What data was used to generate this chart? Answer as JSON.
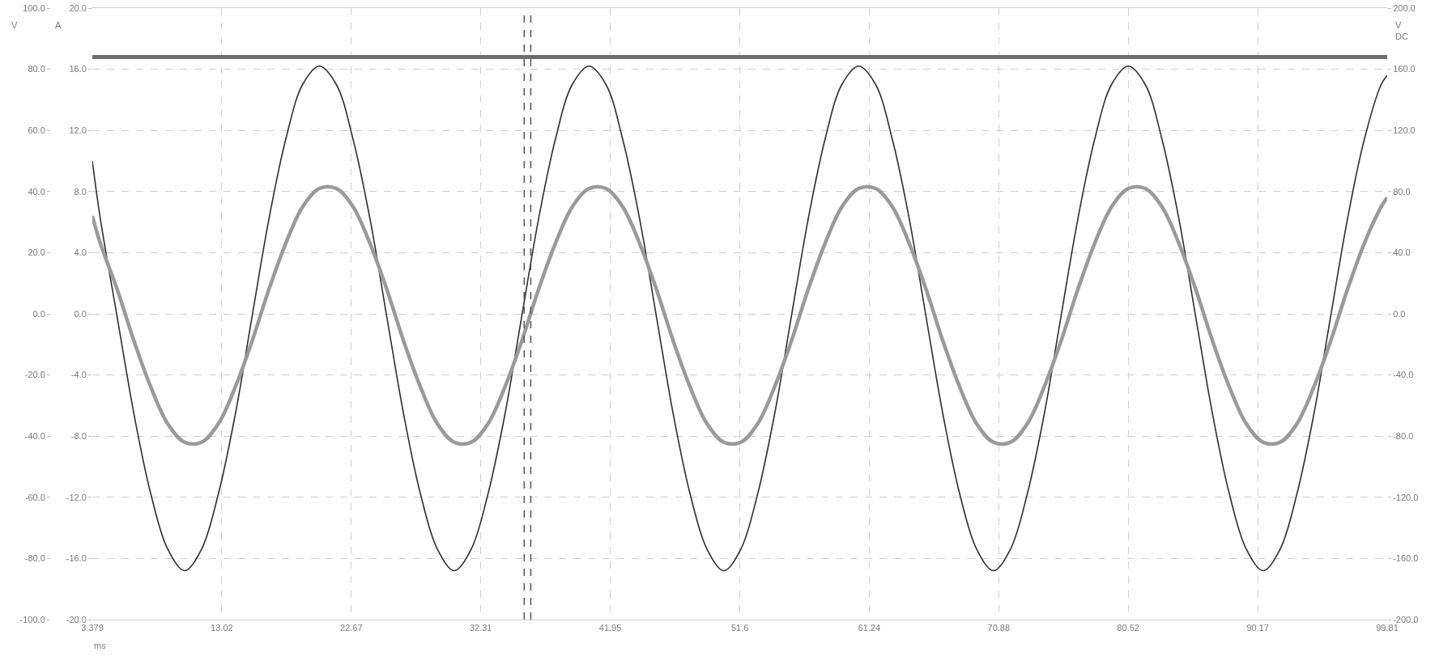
{
  "chart_data": {
    "type": "line",
    "xlabel": "ms",
    "ylabel": "V",
    "y2label": "A",
    "y3label": "V\nDC",
    "x": [
      3.379,
      3.98,
      5.23,
      6.49,
      7.74,
      9.0,
      10.25,
      11.51,
      12.76,
      14.02,
      15.27,
      16.53,
      17.78,
      19.04,
      20.29,
      21.55,
      22.8,
      24.06,
      25.31,
      26.57,
      27.82,
      29.08,
      30.33,
      31.59,
      32.84,
      34.1,
      35.35,
      36.61,
      37.86,
      39.12,
      40.37,
      41.63,
      42.88,
      44.14,
      45.39,
      46.65,
      47.9,
      49.16,
      50.41,
      51.67,
      52.92,
      54.18,
      55.43,
      56.69,
      57.94,
      59.2,
      60.45,
      61.71,
      62.96,
      64.22,
      65.47,
      66.73,
      67.98,
      69.24,
      70.49,
      71.75,
      73.0,
      74.26,
      75.51,
      76.77,
      78.02,
      79.28,
      80.53,
      81.79,
      83.04,
      84.3,
      85.55,
      86.81,
      88.06,
      89.32,
      90.57,
      91.83,
      93.08,
      94.34,
      95.59,
      96.85,
      98.1,
      99.36,
      99.81
    ],
    "xlim": [
      3.379,
      99.81
    ],
    "xticks": [
      3.379,
      13.02,
      22.67,
      32.31,
      41.95,
      51.6,
      61.24,
      70.88,
      80.52,
      90.17,
      99.81
    ],
    "ylim": [
      -100,
      100
    ],
    "yticks": [
      {
        "value": -100,
        "label": "-100.0"
      },
      {
        "value": -80,
        "label": "-80.0"
      },
      {
        "value": -60,
        "label": "-60.0"
      },
      {
        "value": -40,
        "label": "-40.0"
      },
      {
        "value": -20,
        "label": "-20.0"
      },
      {
        "value": 0,
        "label": "0.0"
      },
      {
        "value": 20,
        "label": "20.0"
      },
      {
        "value": 40,
        "label": "40.0"
      },
      {
        "value": 60,
        "label": "60.0"
      },
      {
        "value": 80,
        "label": "80.0"
      },
      {
        "value": 100,
        "label": "100.0"
      }
    ],
    "y2lim": [
      -20,
      20
    ],
    "y2ticks": [
      {
        "value": -20,
        "label": "-20.0"
      },
      {
        "value": -16,
        "label": "-16.0"
      },
      {
        "value": -12,
        "label": "-12.0"
      },
      {
        "value": -8,
        "label": "-8.0"
      },
      {
        "value": -4,
        "label": "-4.0"
      },
      {
        "value": 0,
        "label": "0.0"
      },
      {
        "value": 4,
        "label": "4.0"
      },
      {
        "value": 8,
        "label": "8.0"
      },
      {
        "value": 12,
        "label": "12.0"
      },
      {
        "value": 16,
        "label": "16.0"
      },
      {
        "value": 20,
        "label": "20.0"
      }
    ],
    "y3lim": [
      -200,
      200
    ],
    "y3ticks": [
      {
        "value": -200,
        "label": "-200.0"
      },
      {
        "value": -160,
        "label": "-160.0"
      },
      {
        "value": -120,
        "label": "-120.0"
      },
      {
        "value": -80,
        "label": "-80.0"
      },
      {
        "value": -40,
        "label": "-40.0"
      },
      {
        "value": 0,
        "label": "0.0"
      },
      {
        "value": 40,
        "label": "40.0"
      },
      {
        "value": 80,
        "label": "80.0"
      },
      {
        "value": 120,
        "label": "120.0"
      },
      {
        "value": 160,
        "label": "160.0"
      },
      {
        "value": 200,
        "label": "200.0"
      }
    ],
    "series": [
      {
        "color": "#2e2e2e",
        "values": [
          50,
          31,
          -1,
          -33,
          -59,
          -77,
          -84,
          -77,
          -59,
          -33,
          -1,
          31,
          57,
          75,
          81,
          75,
          57,
          31,
          -1,
          -33,
          -59,
          -77,
          -84,
          -77,
          -59,
          -33,
          -1,
          31,
          57,
          75,
          81,
          75,
          57,
          31,
          -1,
          -33,
          -59,
          -77,
          -84,
          -77,
          -59,
          -33,
          -1,
          31,
          57,
          75,
          81,
          75,
          57,
          31,
          -1,
          -33,
          -59,
          -77,
          -84,
          -77,
          -59,
          -33,
          -1,
          31,
          57,
          75,
          81,
          75,
          57,
          31,
          -1,
          -33,
          -59,
          -77,
          -84,
          -77,
          -59,
          -33,
          -1,
          31,
          57,
          75,
          78
        ]
      },
      {
        "color": "#9a9a9a",
        "axis": "y2",
        "values": [
          6.4,
          4.6,
          1.6,
          -1.8,
          -4.8,
          -7.2,
          -8.4,
          -8.4,
          -7.2,
          -4.8,
          -1.8,
          1.6,
          4.6,
          7.0,
          8.2,
          8.2,
          7.0,
          4.6,
          1.6,
          -1.8,
          -4.8,
          -7.2,
          -8.4,
          -8.4,
          -7.2,
          -4.8,
          -1.8,
          1.6,
          4.6,
          7.0,
          8.2,
          8.2,
          7.0,
          4.6,
          1.6,
          -1.8,
          -4.8,
          -7.2,
          -8.4,
          -8.4,
          -7.2,
          -4.8,
          -1.8,
          1.6,
          4.6,
          7.0,
          8.2,
          8.2,
          7.0,
          4.6,
          1.6,
          -1.8,
          -4.8,
          -7.2,
          -8.4,
          -8.4,
          -7.2,
          -4.8,
          -1.8,
          1.6,
          4.6,
          7.0,
          8.2,
          8.2,
          7.0,
          4.6,
          1.6,
          -1.8,
          -4.8,
          -7.2,
          -8.4,
          -8.4,
          -7.2,
          -4.8,
          -1.8,
          1.6,
          4.6,
          7.0,
          7.6
        ]
      },
      {
        "color": "#6e6e6e",
        "axis": "y3",
        "x": [
          3.379,
          99.81
        ],
        "values": [
          168,
          168
        ]
      }
    ],
    "ref_lines": [
      {
        "axis": "x",
        "value": 35.54,
        "color": "#555555",
        "line_style": "dashed"
      },
      {
        "axis": "x",
        "value": 36.03,
        "color": "#555555",
        "line_style": "dashed"
      }
    ],
    "grid": true
  }
}
